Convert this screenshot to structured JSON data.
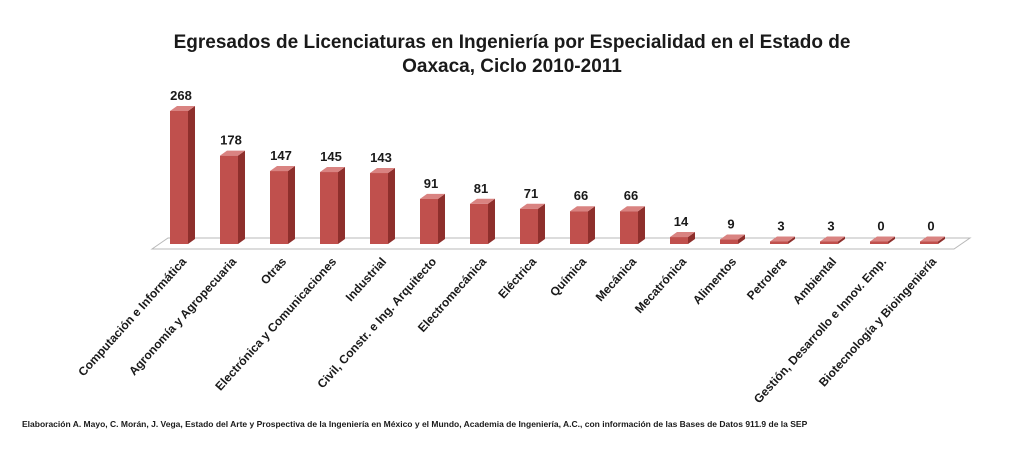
{
  "chart_data": {
    "type": "bar",
    "title": [
      "Egresados de Licenciaturas en Ingeniería por Especialidad en el Estado de",
      "Oaxaca, Ciclo 2010-2011"
    ],
    "categories": [
      "Computación e Informática",
      "Agronomía y Agropecuaria",
      "Otras",
      "Electrónica y Comunicaciones",
      "Industrial",
      "Civil, Constr. e Ing. Arquitecto",
      "Electromecánica",
      "Eléctrica",
      "Química",
      "Mecánica",
      "Mecatrónica",
      "Alimentos",
      "Petrolera",
      "Ambiental",
      "Gestión, Desarrollo e Innov. Emp.",
      "Biotecnología y Bioingeniería"
    ],
    "values": [
      268,
      178,
      147,
      145,
      143,
      91,
      81,
      71,
      66,
      66,
      14,
      9,
      3,
      3,
      0,
      0
    ],
    "xlabel": "",
    "ylabel": "",
    "ylim": [
      0,
      268
    ],
    "grid": false,
    "legend": "none",
    "data_labels": true,
    "three_d": true,
    "colors": {
      "bar_front": "#c0504d",
      "bar_side": "#8e2f2c",
      "bar_top": "#d98381",
      "floor": "#ffffff"
    }
  },
  "source_note": "Elaboración A. Mayo, C. Morán, J. Vega, Estado del Arte y Prospectiva de la Ingeniería en México y el Mundo, Academia de Ingeniería, A.C., con información de las Bases de Datos  911.9  de la SEP"
}
